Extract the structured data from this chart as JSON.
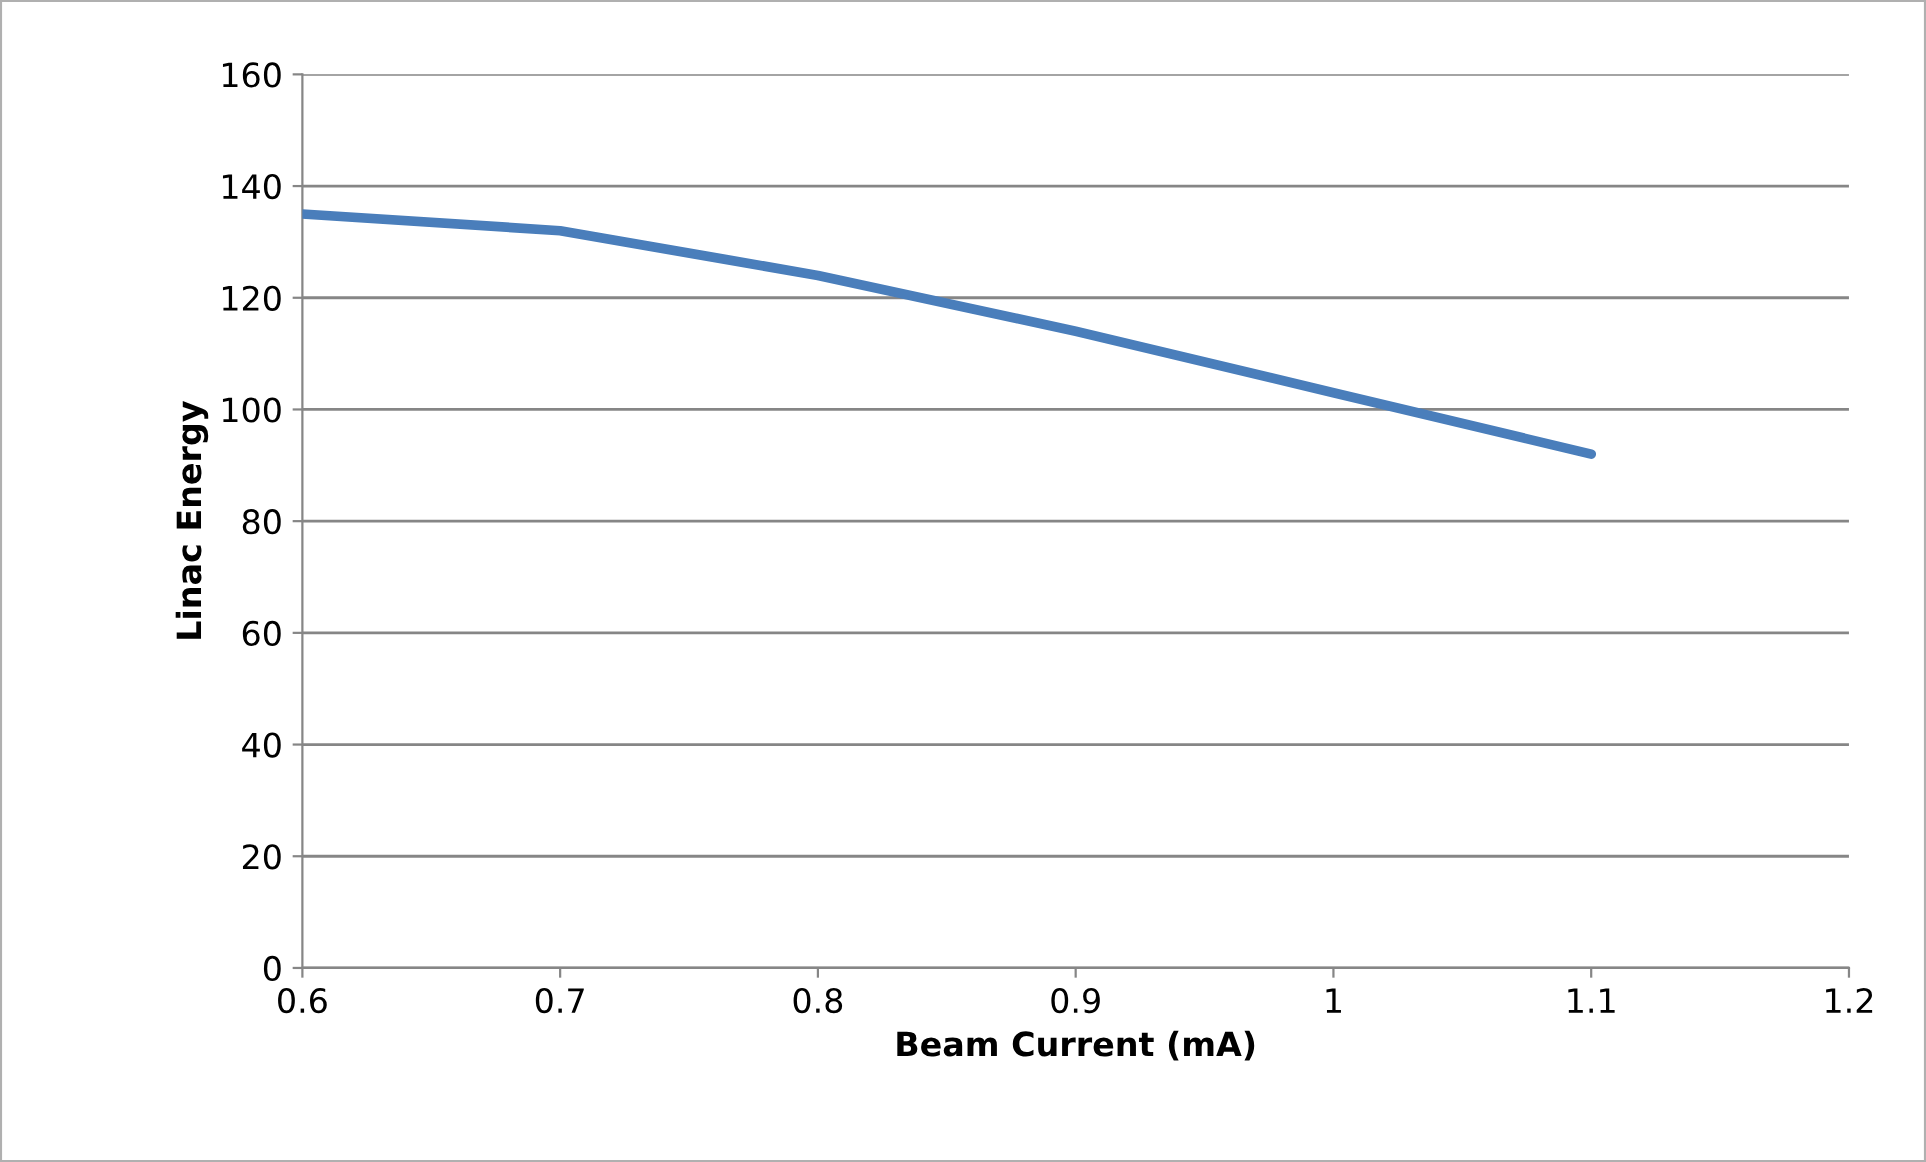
{
  "chart_data": {
    "type": "line",
    "xlabel": "Beam Current (mA)",
    "ylabel": "Linac Energy",
    "x": [
      0.6,
      0.7,
      0.8,
      0.9,
      1.0,
      1.1
    ],
    "series": [
      {
        "color": "#4a7ebb",
        "values": [
          135,
          132,
          124,
          114,
          103,
          92
        ]
      }
    ],
    "xlim": [
      0.6,
      1.2
    ],
    "xticks": [
      0.6,
      0.7,
      0.8,
      0.9,
      {
        "value": 1.0,
        "label": "1"
      },
      1.1,
      1.2
    ],
    "ylim": [
      0,
      160
    ],
    "yticks": [
      0,
      20,
      40,
      60,
      80,
      100,
      120,
      140,
      160
    ],
    "grid": "y",
    "legend": false,
    "marker": "none",
    "line_style": "solid"
  }
}
